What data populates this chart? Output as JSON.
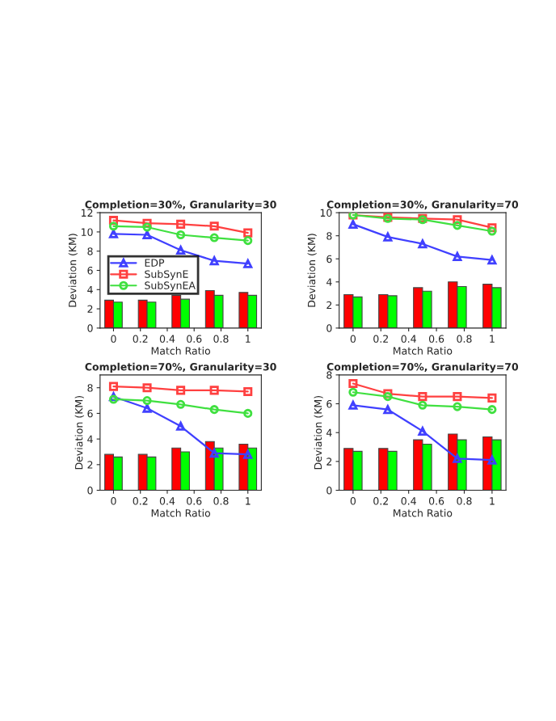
{
  "chart_data": [
    {
      "type": "line",
      "title": "Completion=30%, Granularity=30",
      "xlabel": "Match Ratio",
      "ylabel": "Deviation (KM)",
      "x": [
        0,
        0.25,
        0.5,
        0.75,
        1
      ],
      "xlim": [
        -0.1,
        1.1
      ],
      "xticks": [
        0,
        0.2,
        0.4,
        0.6,
        0.8,
        1
      ],
      "ylim": [
        0,
        12
      ],
      "yticks": [
        0,
        2,
        4,
        6,
        8,
        10,
        12
      ],
      "legend": "left",
      "series": [
        {
          "type": "bar",
          "color": "#ff0000",
          "values": [
            2.9,
            2.9,
            3.4,
            3.9,
            3.7
          ]
        },
        {
          "type": "bar",
          "color": "#00ff00",
          "values": [
            2.7,
            2.7,
            3.0,
            3.4,
            3.4
          ]
        },
        {
          "name": "EDP",
          "color": "#4040ff",
          "marker": "triangle",
          "values": [
            9.8,
            9.7,
            8.1,
            7.0,
            6.7
          ]
        },
        {
          "name": "SubSynE",
          "color": "#ff4040",
          "marker": "square",
          "values": [
            11.2,
            10.9,
            10.8,
            10.6,
            9.9
          ]
        },
        {
          "name": "SubSynEA",
          "color": "#40e040",
          "marker": "circle",
          "values": [
            10.6,
            10.5,
            9.7,
            9.4,
            9.1
          ]
        }
      ]
    },
    {
      "type": "line",
      "title": "Completion=30%, Granularity=70",
      "xlabel": "Match Ratio",
      "ylabel": "Deviation (KM)",
      "x": [
        0,
        0.25,
        0.5,
        0.75,
        1
      ],
      "xlim": [
        -0.1,
        1.1
      ],
      "xticks": [
        0,
        0.2,
        0.4,
        0.6,
        0.8,
        1
      ],
      "ylim": [
        0,
        10
      ],
      "yticks": [
        0,
        2,
        4,
        6,
        8,
        10
      ],
      "series": [
        {
          "type": "bar",
          "color": "#ff0000",
          "values": [
            2.9,
            2.9,
            3.5,
            4.0,
            3.8
          ]
        },
        {
          "type": "bar",
          "color": "#00ff00",
          "values": [
            2.7,
            2.8,
            3.2,
            3.6,
            3.5
          ]
        },
        {
          "color": "#4040ff",
          "marker": "triangle",
          "values": [
            9.0,
            7.9,
            7.3,
            6.2,
            5.9
          ]
        },
        {
          "color": "#ff4040",
          "marker": "square",
          "values": [
            9.8,
            9.6,
            9.5,
            9.4,
            8.7
          ]
        },
        {
          "color": "#40e040",
          "marker": "circle",
          "values": [
            9.8,
            9.5,
            9.4,
            8.9,
            8.4
          ]
        }
      ]
    },
    {
      "type": "line",
      "title": "Completion=70%, Granularity=30",
      "xlabel": "Match Ratio",
      "ylabel": "Deviation (KM)",
      "x": [
        0,
        0.25,
        0.5,
        0.75,
        1
      ],
      "xlim": [
        -0.1,
        1.1
      ],
      "xticks": [
        0,
        0.2,
        0.4,
        0.6,
        0.8,
        1
      ],
      "ylim": [
        0,
        9
      ],
      "yticks": [
        0,
        2,
        4,
        6,
        8
      ],
      "series": [
        {
          "type": "bar",
          "color": "#ff0000",
          "values": [
            2.8,
            2.8,
            3.3,
            3.8,
            3.6
          ]
        },
        {
          "type": "bar",
          "color": "#00ff00",
          "values": [
            2.6,
            2.6,
            3.0,
            3.3,
            3.3
          ]
        },
        {
          "color": "#4040ff",
          "marker": "triangle",
          "values": [
            7.3,
            6.4,
            5.0,
            2.9,
            2.8
          ]
        },
        {
          "color": "#ff4040",
          "marker": "square",
          "values": [
            8.1,
            8.0,
            7.8,
            7.8,
            7.7
          ]
        },
        {
          "color": "#40e040",
          "marker": "circle",
          "values": [
            7.1,
            7.0,
            6.7,
            6.3,
            6.0
          ]
        }
      ]
    },
    {
      "type": "line",
      "title": "Completion=70%, Granularity=70",
      "xlabel": "Match Ratio",
      "ylabel": "Deviation (KM)",
      "x": [
        0,
        0.25,
        0.5,
        0.75,
        1
      ],
      "xlim": [
        -0.1,
        1.1
      ],
      "xticks": [
        0,
        0.2,
        0.4,
        0.6,
        0.8,
        1
      ],
      "ylim": [
        0,
        8
      ],
      "yticks": [
        0,
        2,
        4,
        6,
        8
      ],
      "series": [
        {
          "type": "bar",
          "color": "#ff0000",
          "values": [
            2.9,
            2.9,
            3.5,
            3.9,
            3.7
          ]
        },
        {
          "type": "bar",
          "color": "#00ff00",
          "values": [
            2.7,
            2.7,
            3.2,
            3.5,
            3.5
          ]
        },
        {
          "color": "#4040ff",
          "marker": "triangle",
          "values": [
            5.9,
            5.6,
            4.1,
            2.2,
            2.1
          ]
        },
        {
          "color": "#ff4040",
          "marker": "square",
          "values": [
            7.4,
            6.7,
            6.5,
            6.5,
            6.4
          ]
        },
        {
          "color": "#40e040",
          "marker": "circle",
          "values": [
            6.8,
            6.5,
            5.9,
            5.8,
            5.6
          ]
        }
      ]
    }
  ]
}
